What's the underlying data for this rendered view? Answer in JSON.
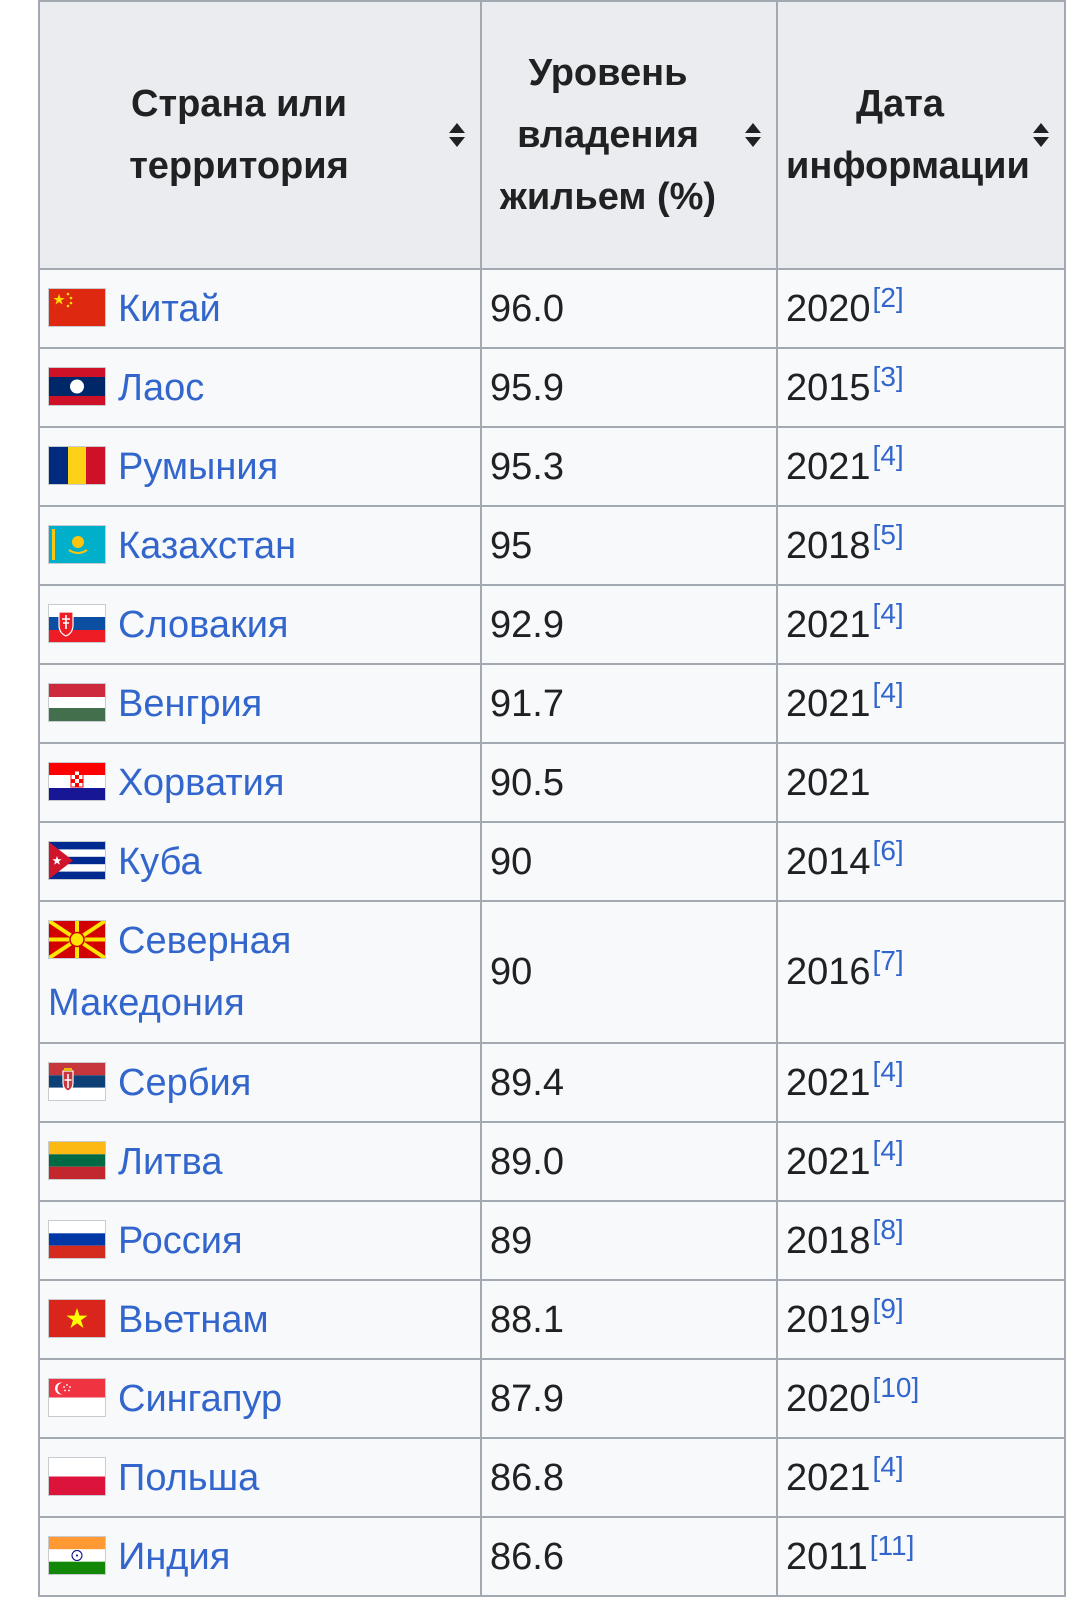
{
  "table": {
    "headers": {
      "country": "Страна или территория",
      "rate": "Уровень владения жильем (%)",
      "date": "Дата информации"
    },
    "rows": [
      {
        "country": "Китай",
        "flag": "china-flag-icon",
        "rate": "96.0",
        "year": "2020",
        "ref": "[2]"
      },
      {
        "country": "Лаос",
        "flag": "laos-flag-icon",
        "rate": "95.9",
        "year": "2015",
        "ref": "[3]"
      },
      {
        "country": "Румыния",
        "flag": "romania-flag-icon",
        "rate": "95.3",
        "year": "2021",
        "ref": "[4]"
      },
      {
        "country": "Казахстан",
        "flag": "kazakhstan-flag-icon",
        "rate": "95",
        "year": "2018",
        "ref": "[5]"
      },
      {
        "country": "Словакия",
        "flag": "slovakia-flag-icon",
        "rate": "92.9",
        "year": "2021",
        "ref": "[4]"
      },
      {
        "country": "Венгрия",
        "flag": "hungary-flag-icon",
        "rate": "91.7",
        "year": "2021",
        "ref": "[4]"
      },
      {
        "country": "Хорватия",
        "flag": "croatia-flag-icon",
        "rate": "90.5",
        "year": "2021",
        "ref": ""
      },
      {
        "country": "Куба",
        "flag": "cuba-flag-icon",
        "rate": "90",
        "year": "2014",
        "ref": "[6]"
      },
      {
        "country": "Северная Македония",
        "flag": "north-macedonia-flag-icon",
        "rate": "90",
        "year": "2016",
        "ref": "[7]"
      },
      {
        "country": "Сербия",
        "flag": "serbia-flag-icon",
        "rate": "89.4",
        "year": "2021",
        "ref": "[4]"
      },
      {
        "country": "Литва",
        "flag": "lithuania-flag-icon",
        "rate": "89.0",
        "year": "2021",
        "ref": "[4]"
      },
      {
        "country": "Россия",
        "flag": "russia-flag-icon",
        "rate": "89",
        "year": "2018",
        "ref": "[8]"
      },
      {
        "country": "Вьетнам",
        "flag": "vietnam-flag-icon",
        "rate": "88.1",
        "year": "2019",
        "ref": "[9]"
      },
      {
        "country": "Сингапур",
        "flag": "singapore-flag-icon",
        "rate": "87.9",
        "year": "2020",
        "ref": "[10]"
      },
      {
        "country": "Польша",
        "flag": "poland-flag-icon",
        "rate": "86.8",
        "year": "2021",
        "ref": "[4]"
      },
      {
        "country": "Индия",
        "flag": "india-flag-icon",
        "rate": "86.6",
        "year": "2011",
        "ref": "[11]"
      }
    ]
  },
  "colors": {
    "link": "#3366cc",
    "header_bg": "#eaecf0",
    "cell_bg": "#f8f9fa",
    "border": "#a2a9b1"
  }
}
